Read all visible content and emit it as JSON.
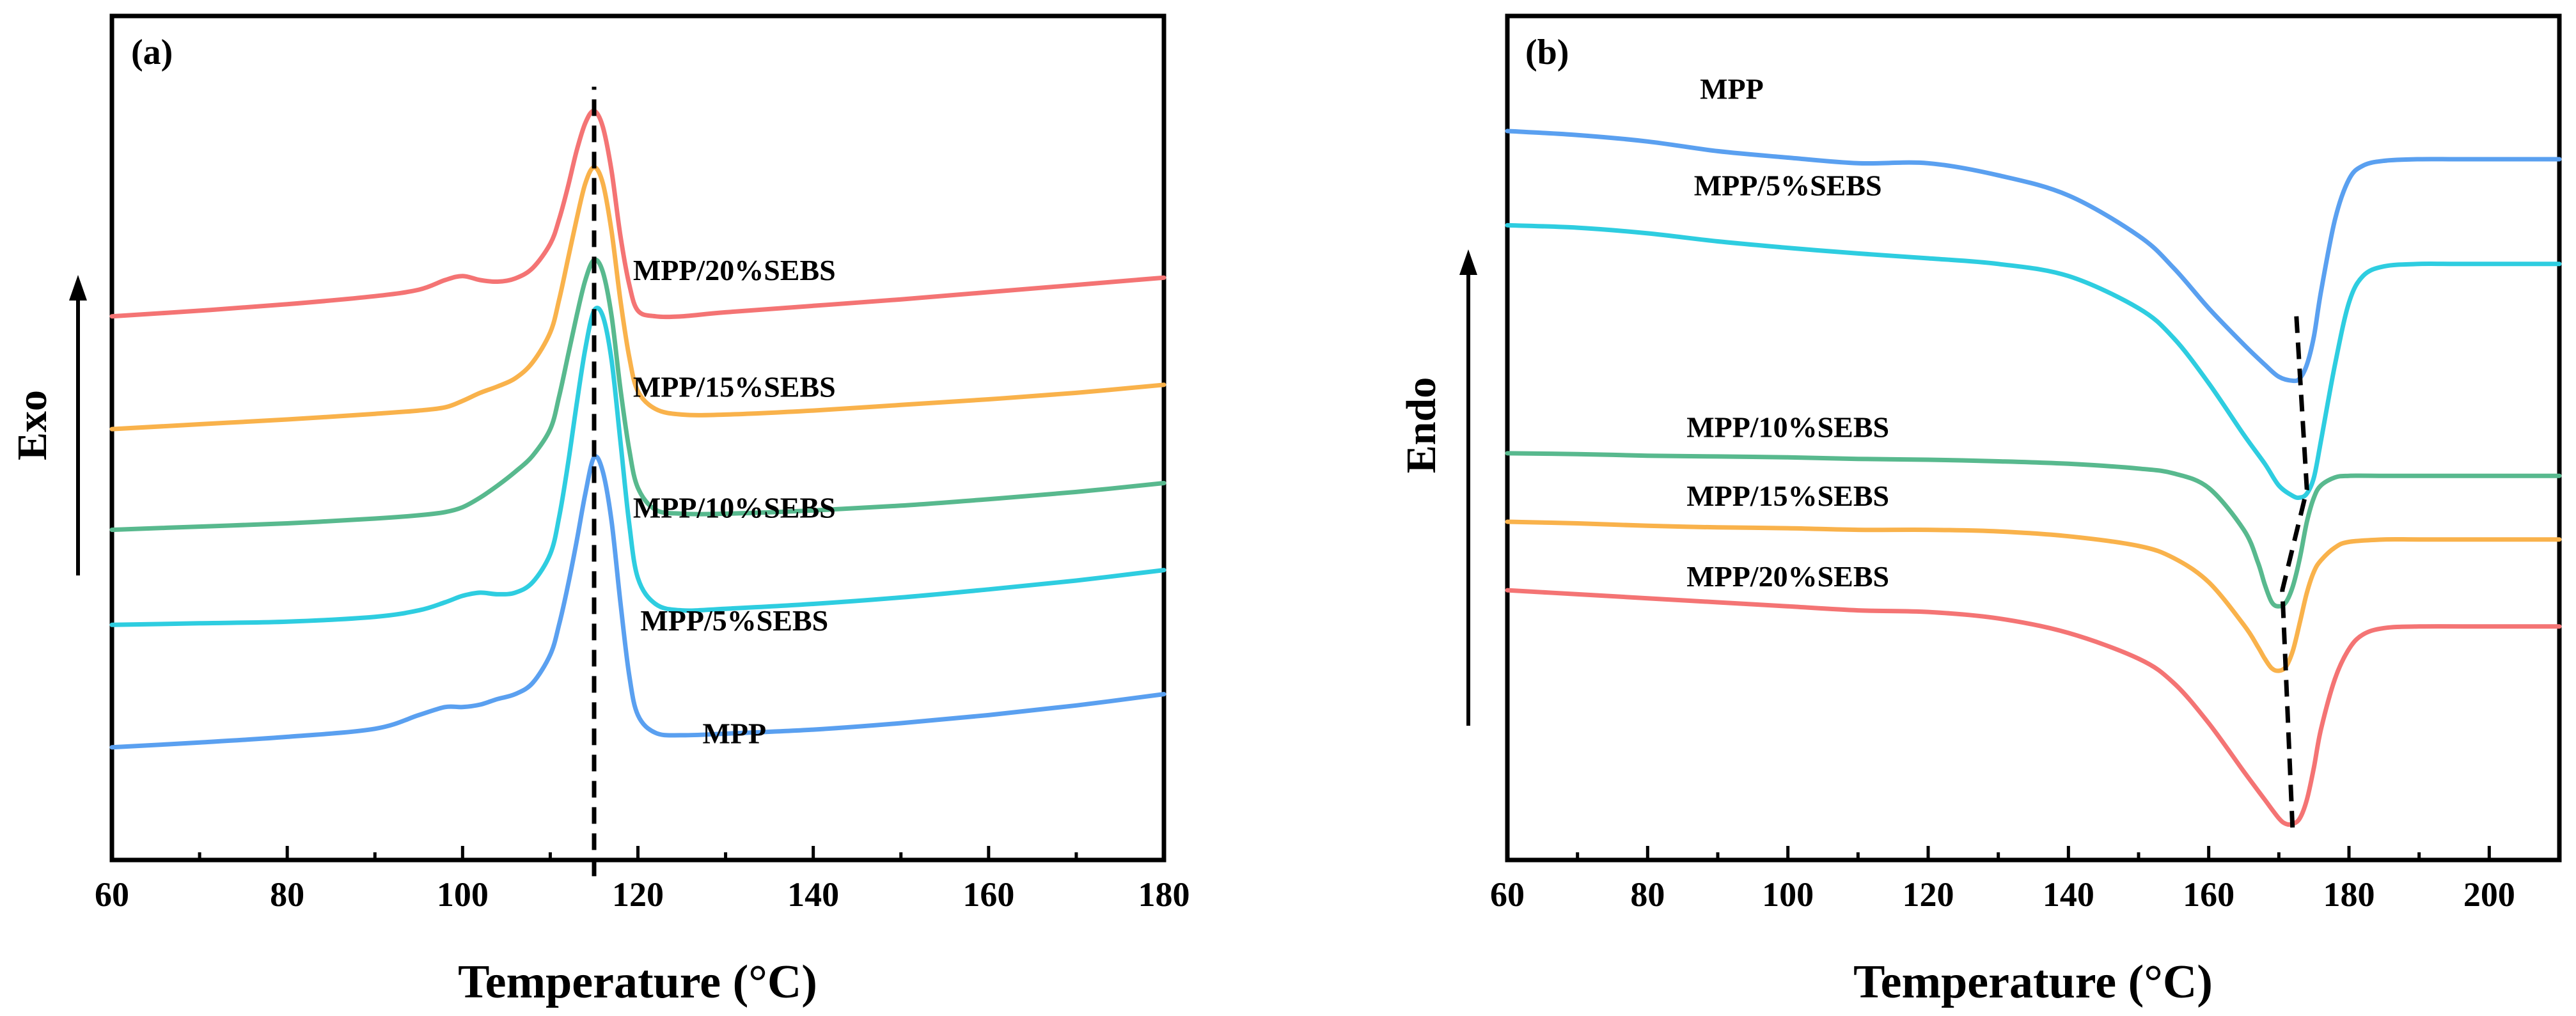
{
  "chart_data": [
    {
      "id": "a",
      "type": "line",
      "panel_label": "(a)",
      "xlabel": "Temperature (°C)",
      "ylabel": "Exo",
      "xlim": [
        60,
        180
      ],
      "xticks": [
        60,
        80,
        100,
        120,
        140,
        160,
        180
      ],
      "ylim": [
        0,
        10
      ],
      "yaxis_ticks": false,
      "peak_marker": {
        "x": [
          115,
          115
        ],
        "y": [
          -0.4,
          9.4
        ],
        "style": "dashed"
      },
      "series": [
        {
          "name": "MPP/20%SEBS",
          "color": "#f47474",
          "label_pos": {
            "x": 131,
            "y": 7.0
          },
          "x": [
            60,
            70,
            80,
            90,
            95,
            98,
            100,
            102,
            104,
            106,
            108,
            110,
            111,
            112,
            113,
            114,
            115,
            116,
            117,
            118,
            119,
            120,
            122,
            125,
            130,
            140,
            150,
            160,
            170,
            180
          ],
          "y": [
            6.55,
            6.62,
            6.7,
            6.8,
            6.88,
            7.0,
            7.05,
            7.0,
            6.98,
            7.02,
            7.15,
            7.45,
            7.75,
            8.15,
            8.6,
            8.95,
            9.1,
            8.9,
            8.35,
            7.55,
            6.95,
            6.62,
            6.55,
            6.55,
            6.6,
            6.68,
            6.76,
            6.85,
            6.94,
            7.03
          ]
        },
        {
          "name": "MPP/15%SEBS",
          "color": "#f9b24b",
          "label_pos": {
            "x": 131,
            "y": 5.55
          },
          "x": [
            60,
            70,
            80,
            90,
            95,
            98,
            100,
            102,
            104,
            106,
            108,
            110,
            111,
            112,
            113,
            114,
            115,
            116,
            117,
            118,
            119,
            120,
            122,
            125,
            130,
            140,
            150,
            160,
            170,
            180
          ],
          "y": [
            5.15,
            5.21,
            5.27,
            5.34,
            5.38,
            5.42,
            5.5,
            5.6,
            5.68,
            5.78,
            5.98,
            6.35,
            6.75,
            7.25,
            7.75,
            8.2,
            8.4,
            8.2,
            7.6,
            6.75,
            6.05,
            5.62,
            5.4,
            5.33,
            5.33,
            5.38,
            5.45,
            5.52,
            5.6,
            5.7
          ]
        },
        {
          "name": "MPP/10%SEBS",
          "color": "#58b98e",
          "label_pos": {
            "x": 131,
            "y": 4.05
          },
          "x": [
            60,
            70,
            80,
            90,
            95,
            98,
            100,
            102,
            104,
            106,
            108,
            110,
            111,
            112,
            113,
            114,
            115,
            116,
            117,
            118,
            119,
            120,
            122,
            125,
            130,
            140,
            150,
            160,
            170,
            180
          ],
          "y": [
            3.9,
            3.94,
            3.98,
            4.04,
            4.08,
            4.12,
            4.18,
            4.3,
            4.45,
            4.62,
            4.82,
            5.15,
            5.55,
            6.05,
            6.55,
            7.0,
            7.25,
            7.1,
            6.55,
            5.65,
            4.9,
            4.42,
            4.15,
            4.1,
            4.1,
            4.14,
            4.2,
            4.28,
            4.37,
            4.48
          ]
        },
        {
          "name": "MPP/5%SEBS",
          "color": "#2ecde0",
          "label_pos": {
            "x": 131,
            "y": 2.65
          },
          "x": [
            60,
            70,
            80,
            90,
            95,
            98,
            100,
            102,
            104,
            106,
            108,
            110,
            111,
            112,
            113,
            114,
            115,
            116,
            117,
            118,
            119,
            120,
            122,
            125,
            130,
            140,
            150,
            160,
            170,
            180
          ],
          "y": [
            2.72,
            2.74,
            2.76,
            2.82,
            2.9,
            3.0,
            3.08,
            3.12,
            3.1,
            3.12,
            3.25,
            3.6,
            4.05,
            4.7,
            5.45,
            6.15,
            6.62,
            6.55,
            6.0,
            5.0,
            3.98,
            3.3,
            2.98,
            2.9,
            2.92,
            2.98,
            3.06,
            3.16,
            3.27,
            3.4
          ]
        },
        {
          "name": "MPP",
          "color": "#5aa0f0",
          "label_pos": {
            "x": 131,
            "y": 1.25
          },
          "x": [
            60,
            70,
            80,
            90,
            95,
            98,
            100,
            102,
            104,
            106,
            108,
            110,
            111,
            112,
            113,
            114,
            115,
            116,
            117,
            118,
            119,
            120,
            122,
            125,
            130,
            140,
            150,
            160,
            170,
            180
          ],
          "y": [
            1.2,
            1.26,
            1.33,
            1.43,
            1.6,
            1.7,
            1.7,
            1.73,
            1.8,
            1.86,
            2.0,
            2.35,
            2.72,
            3.2,
            3.75,
            4.35,
            4.8,
            4.62,
            4.0,
            3.0,
            2.1,
            1.6,
            1.38,
            1.35,
            1.37,
            1.42,
            1.5,
            1.6,
            1.72,
            1.86
          ]
        }
      ]
    },
    {
      "id": "b",
      "type": "line",
      "panel_label": "(b)",
      "xlabel": "Temperature (°C)",
      "ylabel": "Endo",
      "xlim": [
        60,
        210
      ],
      "xticks": [
        60,
        80,
        100,
        120,
        140,
        160,
        180,
        200
      ],
      "ylim": [
        0,
        10
      ],
      "yaxis_ticks": false,
      "peak_marker": {
        "x": [
          172.5,
          174.0,
          170.5,
          172.0
        ],
        "y": [
          6.55,
          4.4,
          3.15,
          0.1
        ],
        "style": "dashed"
      },
      "series": [
        {
          "name": "MPP",
          "color": "#5aa0f0",
          "label_pos": {
            "x": 92,
            "y": 9.25
          },
          "x": [
            60,
            70,
            80,
            90,
            100,
            110,
            120,
            130,
            140,
            150,
            155,
            160,
            165,
            168,
            170,
            172,
            173,
            174,
            175,
            176,
            178,
            180,
            182,
            185,
            190,
            195,
            200,
            210
          ],
          "y": [
            8.85,
            8.8,
            8.72,
            8.6,
            8.52,
            8.45,
            8.45,
            8.3,
            8.05,
            7.55,
            7.15,
            6.65,
            6.2,
            5.95,
            5.8,
            5.75,
            5.78,
            5.95,
            6.3,
            6.85,
            7.75,
            8.25,
            8.42,
            8.48,
            8.5,
            8.5,
            8.5,
            8.5
          ]
        },
        {
          "name": "MPP/5%SEBS",
          "color": "#2ecde0",
          "label_pos": {
            "x": 100,
            "y": 8.05
          },
          "x": [
            60,
            70,
            80,
            90,
            100,
            110,
            120,
            130,
            140,
            150,
            155,
            160,
            165,
            168,
            170,
            172,
            173,
            174,
            175,
            176,
            178,
            180,
            182,
            185,
            190,
            195,
            200,
            210
          ],
          "y": [
            7.68,
            7.65,
            7.58,
            7.48,
            7.4,
            7.33,
            7.27,
            7.2,
            7.05,
            6.65,
            6.28,
            5.72,
            5.08,
            4.72,
            4.45,
            4.32,
            4.3,
            4.35,
            4.55,
            5.0,
            5.95,
            6.72,
            7.05,
            7.17,
            7.2,
            7.2,
            7.2,
            7.2
          ]
        },
        {
          "name": "MPP/10%SEBS",
          "color": "#58b98e",
          "label_pos": {
            "x": 100,
            "y": 5.05
          },
          "x": [
            60,
            70,
            80,
            90,
            100,
            110,
            120,
            130,
            140,
            150,
            155,
            160,
            165,
            167,
            168,
            169,
            170,
            171,
            172,
            173,
            174,
            175,
            176,
            178,
            180,
            185,
            190,
            200,
            210
          ],
          "y": [
            4.85,
            4.84,
            4.82,
            4.81,
            4.8,
            4.78,
            4.77,
            4.75,
            4.72,
            4.66,
            4.6,
            4.42,
            3.9,
            3.5,
            3.22,
            3.0,
            2.95,
            3.0,
            3.2,
            3.55,
            4.0,
            4.3,
            4.45,
            4.55,
            4.57,
            4.57,
            4.57,
            4.57,
            4.57
          ]
        },
        {
          "name": "MPP/15%SEBS",
          "color": "#f9b24b",
          "label_pos": {
            "x": 100,
            "y": 4.2
          },
          "x": [
            60,
            70,
            80,
            90,
            100,
            110,
            120,
            130,
            140,
            150,
            155,
            160,
            165,
            167,
            168,
            169,
            170,
            171,
            172,
            173,
            174,
            175,
            176,
            178,
            180,
            185,
            190,
            200,
            210
          ],
          "y": [
            4.0,
            3.98,
            3.95,
            3.93,
            3.92,
            3.9,
            3.9,
            3.88,
            3.82,
            3.7,
            3.55,
            3.25,
            2.72,
            2.45,
            2.3,
            2.18,
            2.15,
            2.2,
            2.4,
            2.75,
            3.12,
            3.38,
            3.52,
            3.68,
            3.75,
            3.78,
            3.78,
            3.78,
            3.78
          ]
        },
        {
          "name": "MPP/20%SEBS",
          "color": "#f47474",
          "label_pos": {
            "x": 100,
            "y": 3.2
          },
          "x": [
            60,
            70,
            80,
            90,
            100,
            110,
            120,
            130,
            140,
            150,
            155,
            160,
            165,
            168,
            170,
            171,
            172,
            173,
            174,
            175,
            176,
            178,
            180,
            182,
            185,
            190,
            200,
            210
          ],
          "y": [
            3.15,
            3.1,
            3.05,
            3.0,
            2.95,
            2.9,
            2.88,
            2.8,
            2.62,
            2.3,
            2.0,
            1.5,
            0.9,
            0.55,
            0.32,
            0.25,
            0.25,
            0.32,
            0.55,
            0.95,
            1.42,
            2.05,
            2.42,
            2.6,
            2.68,
            2.7,
            2.7,
            2.7
          ]
        }
      ]
    }
  ]
}
